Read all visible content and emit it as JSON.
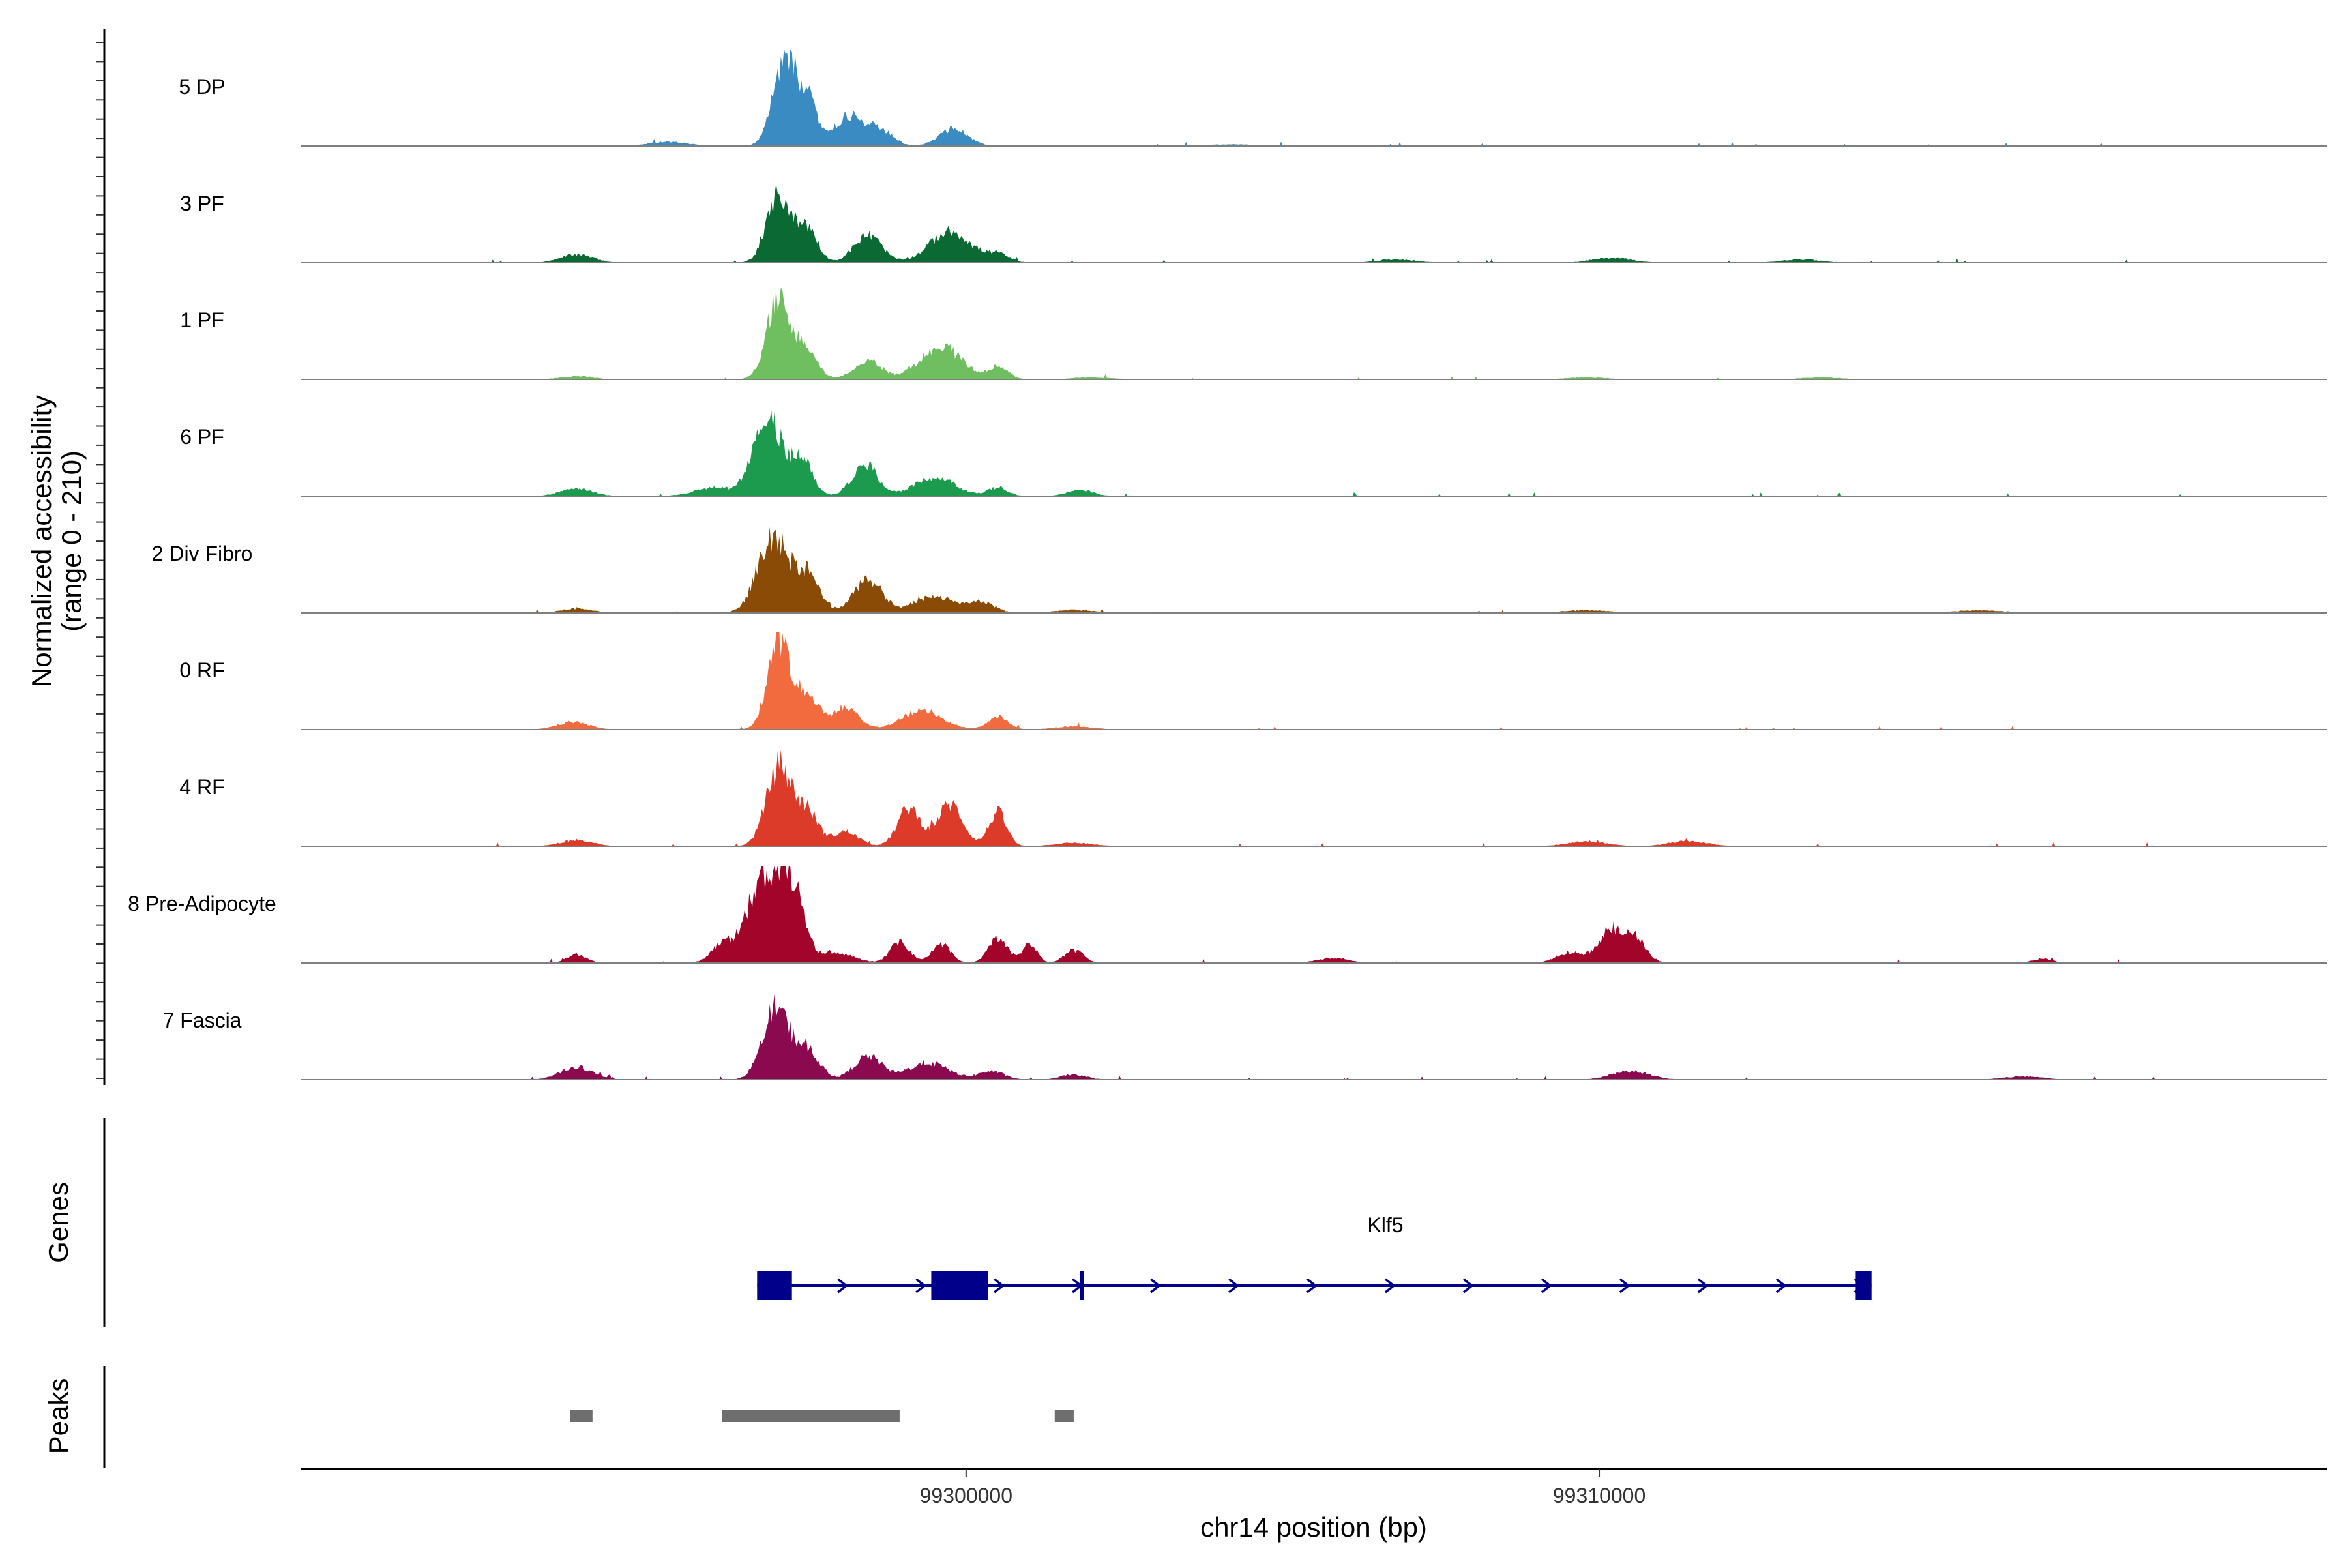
{
  "chart_data": {
    "type": "area",
    "title": "",
    "xlabel": "chr14 position (bp)",
    "ylabel_line1": "Normalized accessibility",
    "ylabel_line2": "(range 0 - 210)",
    "y_range": [
      0,
      210
    ],
    "x_range": [
      99289500,
      99321500
    ],
    "x_ticks": [
      {
        "value": 99300000,
        "label": "99300000"
      },
      {
        "value": 99310000,
        "label": "99310000"
      }
    ],
    "tracks": [
      {
        "name": "5 DP",
        "color": "#3a8bc2",
        "peaks": [
          [
            99297150,
            200,
            190
          ],
          [
            99297500,
            90,
            150
          ],
          [
            99298150,
            70,
            240
          ],
          [
            99298650,
            35,
            200
          ],
          [
            99299800,
            40,
            230
          ],
          [
            99295300,
            10,
            300
          ],
          [
            99304200,
            4,
            400
          ]
        ]
      },
      {
        "name": "3 PF",
        "color": "#0b6a33",
        "peaks": [
          [
            99297050,
            160,
            190
          ],
          [
            99297500,
            80,
            160
          ],
          [
            99298450,
            65,
            220
          ],
          [
            99299750,
            75,
            320
          ],
          [
            99300500,
            20,
            180
          ],
          [
            99293850,
            20,
            250
          ],
          [
            99306800,
            8,
            300
          ],
          [
            99310200,
            12,
            300
          ],
          [
            99313200,
            8,
            300
          ]
        ]
      },
      {
        "name": "1 PF",
        "color": "#6fbf60",
        "peaks": [
          [
            99297050,
            200,
            190
          ],
          [
            99297500,
            60,
            170
          ],
          [
            99298450,
            45,
            220
          ],
          [
            99299600,
            80,
            320
          ],
          [
            99300500,
            30,
            160
          ],
          [
            99293850,
            8,
            250
          ],
          [
            99302000,
            5,
            300
          ],
          [
            99309800,
            5,
            300
          ],
          [
            99313500,
            5,
            300
          ]
        ]
      },
      {
        "name": "6 PF",
        "color": "#1c9a4e",
        "peaks": [
          [
            99296850,
            200,
            220
          ],
          [
            99297400,
            90,
            170
          ],
          [
            99298400,
            75,
            200
          ],
          [
            99299500,
            45,
            320
          ],
          [
            99300500,
            20,
            160
          ],
          [
            99293850,
            18,
            250
          ],
          [
            99296000,
            20,
            300
          ],
          [
            99301800,
            16,
            200
          ]
        ]
      },
      {
        "name": "2 Div Fibro",
        "color": "#8a4b06",
        "peaks": [
          [
            99296950,
            180,
            240
          ],
          [
            99297500,
            90,
            190
          ],
          [
            99298450,
            80,
            220
          ],
          [
            99299500,
            40,
            320
          ],
          [
            99300250,
            25,
            200
          ],
          [
            99293850,
            10,
            250
          ],
          [
            99301700,
            7,
            300
          ],
          [
            99309800,
            6,
            400
          ],
          [
            99316000,
            6,
            400
          ]
        ]
      },
      {
        "name": "0 RF",
        "color": "#f26b3f",
        "peaks": [
          [
            99297050,
            210,
            180
          ],
          [
            99297500,
            80,
            170
          ],
          [
            99298100,
            55,
            200
          ],
          [
            99299300,
            45,
            320
          ],
          [
            99300500,
            30,
            160
          ],
          [
            99293800,
            18,
            250
          ],
          [
            99301700,
            7,
            300
          ]
        ]
      },
      {
        "name": "4 RF",
        "color": "#dc3b2a",
        "peaks": [
          [
            99297050,
            190,
            200
          ],
          [
            99297500,
            80,
            170
          ],
          [
            99298100,
            35,
            200
          ],
          [
            99299100,
            90,
            180
          ],
          [
            99299750,
            100,
            200
          ],
          [
            99300500,
            80,
            140
          ],
          [
            99293850,
            15,
            250
          ],
          [
            99301700,
            8,
            300
          ],
          [
            99309800,
            12,
            300
          ],
          [
            99311400,
            12,
            300
          ]
        ]
      },
      {
        "name": "8 Pre-Adipocyte",
        "color": "#a3042a",
        "peaks": [
          [
            99296800,
            200,
            260
          ],
          [
            99297250,
            160,
            180
          ],
          [
            99296150,
            40,
            180
          ],
          [
            99297900,
            25,
            300
          ],
          [
            99298950,
            50,
            150
          ],
          [
            99299600,
            45,
            150
          ],
          [
            99300500,
            60,
            150
          ],
          [
            99301000,
            45,
            120
          ],
          [
            99301700,
            30,
            150
          ],
          [
            99293850,
            20,
            150
          ],
          [
            99310200,
            80,
            200
          ],
          [
            99310600,
            50,
            160
          ],
          [
            99309550,
            25,
            220
          ],
          [
            99305800,
            12,
            250
          ],
          [
            99317000,
            10,
            150
          ]
        ]
      },
      {
        "name": "7 Fascia",
        "color": "#8b0a4f",
        "peaks": [
          [
            99297000,
            170,
            210
          ],
          [
            99297500,
            70,
            180
          ],
          [
            99298450,
            55,
            220
          ],
          [
            99299400,
            40,
            320
          ],
          [
            99300400,
            20,
            200
          ],
          [
            99293850,
            30,
            250
          ],
          [
            99301700,
            12,
            200
          ],
          [
            99310500,
            20,
            300
          ],
          [
            99316700,
            8,
            300
          ]
        ]
      }
    ],
    "genes_label": "Genes",
    "gene": {
      "name": "Klf5",
      "strand": "+",
      "start": 99296700,
      "end": 99314300,
      "exons": [
        [
          99296700,
          99297250
        ],
        [
          99299450,
          99300350
        ],
        [
          99301800,
          99301850
        ],
        [
          99314050,
          99314300
        ]
      ],
      "color": "#00008b"
    },
    "peaks_label": "Peaks",
    "peak_regions": [
      [
        99293750,
        99294100
      ],
      [
        99296150,
        99298950
      ],
      [
        99301400,
        99301700
      ]
    ],
    "peak_color": "#6e6e6e"
  }
}
